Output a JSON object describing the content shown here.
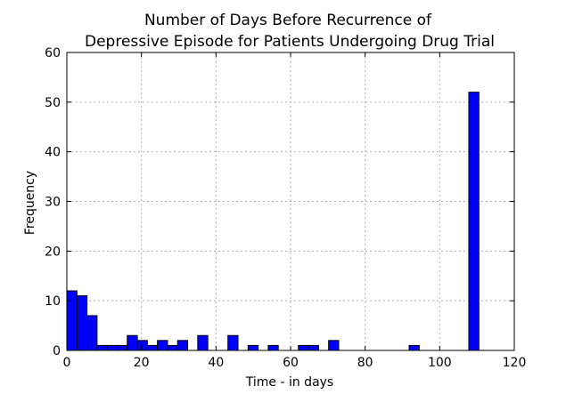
{
  "chart_data": {
    "type": "bar",
    "title_lines": [
      "Number of Days Before Recurrence of",
      "Depressive Episode for Patients Undergoing Drug Trial"
    ],
    "xlabel": "Time - in days",
    "ylabel": "Frequency",
    "xlim": [
      0,
      120
    ],
    "ylim": [
      0,
      60
    ],
    "xticks": [
      0,
      20,
      40,
      60,
      80,
      100,
      120
    ],
    "yticks": [
      0,
      10,
      20,
      30,
      40,
      50,
      60
    ],
    "grid": true,
    "bar_color": "#0000ff",
    "bins": [
      {
        "x0": 0,
        "x1": 2.7,
        "value": 12
      },
      {
        "x0": 2.7,
        "x1": 5.4,
        "value": 11
      },
      {
        "x0": 5.4,
        "x1": 8.1,
        "value": 7
      },
      {
        "x0": 8.1,
        "x1": 10.8,
        "value": 1
      },
      {
        "x0": 10.8,
        "x1": 13.5,
        "value": 1
      },
      {
        "x0": 13.5,
        "x1": 16.2,
        "value": 1
      },
      {
        "x0": 16.2,
        "x1": 18.9,
        "value": 3
      },
      {
        "x0": 18.9,
        "x1": 21.6,
        "value": 2
      },
      {
        "x0": 21.6,
        "x1": 24.3,
        "value": 1
      },
      {
        "x0": 24.3,
        "x1": 27.0,
        "value": 2
      },
      {
        "x0": 27.0,
        "x1": 29.7,
        "value": 1
      },
      {
        "x0": 29.7,
        "x1": 32.4,
        "value": 2
      },
      {
        "x0": 35.1,
        "x1": 37.8,
        "value": 3
      },
      {
        "x0": 43.2,
        "x1": 45.9,
        "value": 3
      },
      {
        "x0": 48.6,
        "x1": 51.3,
        "value": 1
      },
      {
        "x0": 54.0,
        "x1": 56.7,
        "value": 1
      },
      {
        "x0": 62.1,
        "x1": 64.8,
        "value": 1
      },
      {
        "x0": 64.8,
        "x1": 67.5,
        "value": 1
      },
      {
        "x0": 70.2,
        "x1": 72.9,
        "value": 2
      },
      {
        "x0": 91.8,
        "x1": 94.5,
        "value": 1
      },
      {
        "x0": 107.8,
        "x1": 110.5,
        "value": 52
      }
    ]
  }
}
